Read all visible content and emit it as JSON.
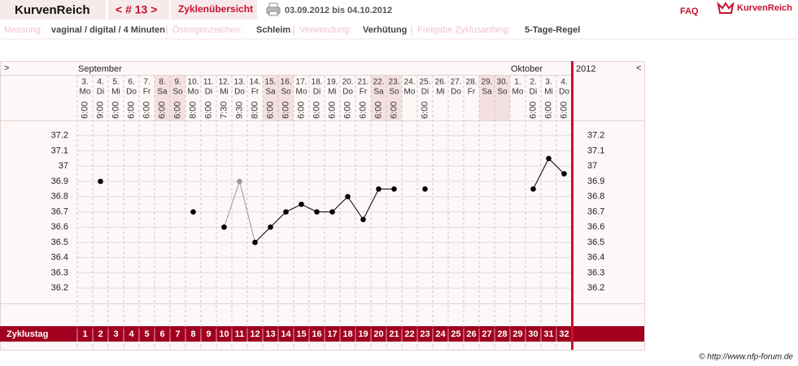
{
  "header": {
    "brand": "KurvenReich",
    "cycle_nav": "< # 13 >",
    "tab": "Zyklenübersicht",
    "date_range": "03.09.2012 bis 04.10.2012",
    "faq": "FAQ",
    "logo": "KurvenReich"
  },
  "info": [
    {
      "label": "Messung:",
      "value": "vaginal / digital / 4 Minuten"
    },
    {
      "label": "Östrogenzeichen:",
      "value": "Schleim"
    },
    {
      "label": "Verwendung:",
      "value": "Verhütung"
    },
    {
      "label": "Freigabe Zyklusanfang:",
      "value": "5-Tage-Regel"
    }
  ],
  "chart_data": {
    "type": "line",
    "nav_next": ">",
    "nav_prev": "<",
    "year": "2012",
    "months": [
      "September",
      "Oktober"
    ],
    "dates": [
      "3.",
      "4.",
      "5.",
      "6.",
      "7.",
      "8.",
      "9.",
      "10.",
      "11.",
      "12.",
      "13.",
      "14.",
      "15.",
      "16.",
      "17.",
      "18.",
      "19.",
      "20.",
      "21.",
      "22.",
      "23.",
      "24.",
      "25.",
      "26.",
      "27.",
      "28.",
      "29.",
      "30.",
      "1.",
      "2.",
      "3.",
      "4."
    ],
    "weekdays": [
      "Mo",
      "Di",
      "Mi",
      "Do",
      "Fr",
      "Sa",
      "So",
      "Mo",
      "Di",
      "Mi",
      "Do",
      "Fr",
      "Sa",
      "So",
      "Mo",
      "Di",
      "Mi",
      "Do",
      "Fr",
      "Sa",
      "So",
      "Mo",
      "Di",
      "Mi",
      "Do",
      "Fr",
      "Sa",
      "So",
      "Mo",
      "Di",
      "Mi",
      "Do"
    ],
    "times": [
      "6:00",
      "9:00",
      "6:00",
      "6:00",
      "6:00",
      "6:00",
      "6:00",
      "8:00",
      "6:00",
      "7:30",
      "9:30",
      "8:00",
      "6:00",
      "6:00",
      "6:00",
      "6:00",
      "6:00",
      "6:00",
      "6:00",
      "6:00",
      "6:00",
      null,
      "6:00",
      null,
      null,
      null,
      null,
      null,
      null,
      "6:00",
      "6:00",
      "6:00"
    ],
    "x_label": "Zyklustag",
    "x": [
      1,
      2,
      3,
      4,
      5,
      6,
      7,
      8,
      9,
      10,
      11,
      12,
      13,
      14,
      15,
      16,
      17,
      18,
      19,
      20,
      21,
      22,
      23,
      24,
      25,
      26,
      27,
      28,
      29,
      30,
      31,
      32
    ],
    "xlim": [
      0.5,
      32.5
    ],
    "ylim": [
      36.1,
      37.3
    ],
    "yticks": [
      36.2,
      36.3,
      36.4,
      36.5,
      36.6,
      36.7,
      36.8,
      36.9,
      37,
      37.1,
      37.2
    ],
    "grid": true,
    "series": [
      {
        "color": "#000000",
        "values": [
          null,
          36.9,
          null,
          null,
          null,
          null,
          null,
          36.7,
          null,
          36.6,
          null,
          36.5,
          36.6,
          36.7,
          36.75,
          36.7,
          36.7,
          36.8,
          36.65,
          36.85,
          36.85,
          null,
          36.85,
          null,
          null,
          null,
          null,
          null,
          null,
          36.85,
          37.05,
          36.95
        ]
      },
      {
        "color": "#999999",
        "values": [
          null,
          null,
          null,
          null,
          null,
          null,
          null,
          null,
          null,
          null,
          36.9,
          null,
          null,
          null,
          null,
          null,
          null,
          null,
          null,
          null,
          null,
          null,
          null,
          null,
          null,
          null,
          null,
          null,
          null,
          null,
          null,
          null
        ]
      }
    ]
  },
  "footer": "© http://www.nfp-forum.de"
}
